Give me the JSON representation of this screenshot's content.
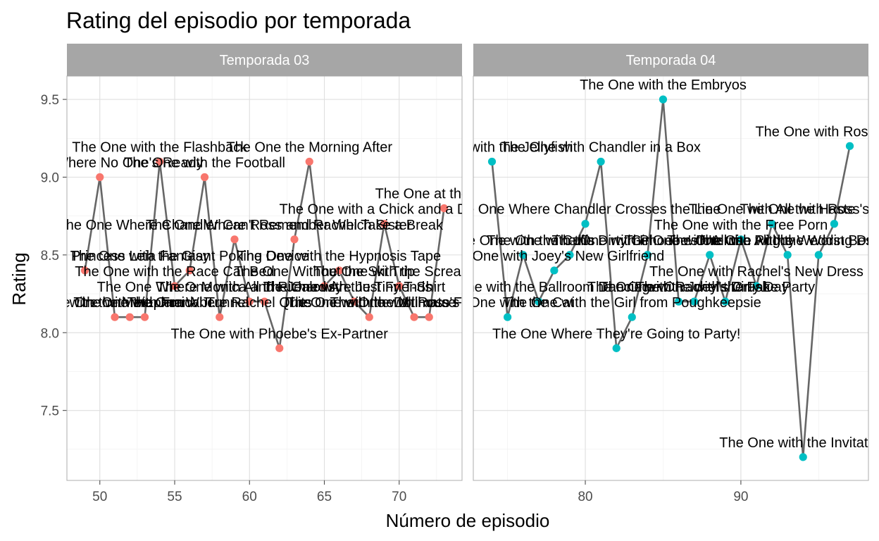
{
  "chart_data": {
    "type": "line",
    "title": "Rating del episodio por temporada",
    "xlabel": "Número de episodio",
    "ylabel": "Rating",
    "ylim": [
      7.05,
      9.65
    ],
    "y_ticks": [
      7.5,
      8.0,
      8.5,
      9.0,
      9.5
    ],
    "y_tick_labels": [
      "7.5",
      "8.0",
      "8.5",
      "9.0",
      "9.5"
    ],
    "grid": true,
    "legend": "none",
    "facets": [
      {
        "strip_label": "Temporada 03",
        "color": "#F8766D",
        "xlim": [
          47.8,
          74.2
        ],
        "x_ticks": [
          50,
          55,
          60,
          65,
          70
        ],
        "x_tick_labels": [
          "50",
          "55",
          "60",
          "65",
          "70"
        ],
        "points": [
          {
            "x": 49,
            "y": 8.4,
            "label": "The One with the Princess Leia Fantasy"
          },
          {
            "x": 50,
            "y": 9.0,
            "label": "The One Where No One's Ready"
          },
          {
            "x": 51,
            "y": 8.1,
            "label": "The One with the Jam"
          },
          {
            "x": 52,
            "y": 8.1,
            "label": "The One with the Metaphorical Tunnel"
          },
          {
            "x": 53,
            "y": 8.1,
            "label": "The One with Frank Jr."
          },
          {
            "x": 54,
            "y": 9.1,
            "label": "The One with the Flashback"
          },
          {
            "x": 55,
            "y": 8.3,
            "label": "The One with the Race Car Bed"
          },
          {
            "x": 56,
            "y": 8.4,
            "label": "The One with the Giant Poking Device"
          },
          {
            "x": 57,
            "y": 9.0,
            "label": "The One with the Football"
          },
          {
            "x": 58,
            "y": 8.1,
            "label": "The One Where Rachel Quits"
          },
          {
            "x": 59,
            "y": 8.6,
            "label": "The One Where Chandler Can't Remember Which Sister"
          },
          {
            "x": 60,
            "y": 8.2,
            "label": "The One with All the Jealousy"
          },
          {
            "x": 61,
            "y": 8.2,
            "label": "The One Where Monica and Richard Are Just Friends"
          },
          {
            "x": 62,
            "y": 7.9,
            "label": "The One with Phoebe's Ex-Partner"
          },
          {
            "x": 63,
            "y": 8.6,
            "label": "The One Where Ross and Rachel Take a Break"
          },
          {
            "x": 64,
            "y": 9.1,
            "label": "The One the Morning After"
          },
          {
            "x": 65,
            "y": 8.3,
            "label": "The One Without the Ski Trip"
          },
          {
            "x": 66,
            "y": 8.4,
            "label": "The One with the Hypnosis Tape"
          },
          {
            "x": 67,
            "y": 8.2,
            "label": "The One with the Tiny T-Shirt"
          },
          {
            "x": 68,
            "y": 8.1,
            "label": "The One with the Dollhouse"
          },
          {
            "x": 69,
            "y": 8.7,
            "label": "The One with a Chick and a Duck"
          },
          {
            "x": 70,
            "y": 8.3,
            "label": "The One with the Screamer"
          },
          {
            "x": 71,
            "y": 8.1,
            "label": "The One with Ross's Thing"
          },
          {
            "x": 72,
            "y": 8.1,
            "label": "The One with the Ultimate Fighting Champion"
          },
          {
            "x": 73,
            "y": 8.8,
            "label": "The One at the Beach"
          }
        ]
      },
      {
        "strip_label": "Temporada 04",
        "color": "#00BFC4",
        "xlim": [
          72.8,
          98.2
        ],
        "x_ticks": [
          80,
          90
        ],
        "x_tick_labels": [
          "80",
          "90"
        ],
        "points": [
          {
            "x": 74,
            "y": 9.1,
            "label": "The One with the Jellyfish"
          },
          {
            "x": 75,
            "y": 8.1,
            "label": "The One with the Cat"
          },
          {
            "x": 76,
            "y": 8.5,
            "label": "The One with the Cuffs"
          },
          {
            "x": 77,
            "y": 8.2,
            "label": "The One with the Ballroom Dancing"
          },
          {
            "x": 78,
            "y": 8.4,
            "label": "The One with Joey's New Girlfriend"
          },
          {
            "x": 79,
            "y": 8.5,
            "label": "The One with the Dirty Girl"
          },
          {
            "x": 80,
            "y": 8.7,
            "label": "The One Where Chandler Crosses the Line"
          },
          {
            "x": 81,
            "y": 9.1,
            "label": "The One with Chandler in a Box"
          },
          {
            "x": 82,
            "y": 7.9,
            "label": "The One Where They're Going to Party!"
          },
          {
            "x": 83,
            "y": 8.1,
            "label": "The One with the Girl from Poughkeepsie"
          },
          {
            "x": 84,
            "y": 8.5,
            "label": "The One with Phoebe's Uterus"
          },
          {
            "x": 85,
            "y": 9.5,
            "label": "The One with the Embryos"
          },
          {
            "x": 86,
            "y": 8.2,
            "label": "The One with Rachel's Crush"
          },
          {
            "x": 87,
            "y": 8.2,
            "label": "The One with Joey's Dirty Day"
          },
          {
            "x": 88,
            "y": 8.5,
            "label": "The One with All the Rugby"
          },
          {
            "x": 89,
            "y": 8.2,
            "label": "The One with the Fake Party"
          },
          {
            "x": 90,
            "y": 8.6,
            "label": "The One with the Free Porn"
          },
          {
            "x": 91,
            "y": 8.3,
            "label": "The One with Rachel's New Dress"
          },
          {
            "x": 92,
            "y": 8.7,
            "label": "The One with All the Haste"
          },
          {
            "x": 93,
            "y": 8.5,
            "label": "The One with All the Wedding Dresses"
          },
          {
            "x": 94,
            "y": 7.2,
            "label": "The One with the Invitation"
          },
          {
            "x": 95,
            "y": 8.5,
            "label": "The One with the Worst Best Man Ever"
          },
          {
            "x": 96,
            "y": 8.7,
            "label": "The One with Ross's Wedding"
          },
          {
            "x": 97,
            "y": 9.2,
            "label": "The One with Ross's Wedding"
          }
        ]
      }
    ]
  }
}
